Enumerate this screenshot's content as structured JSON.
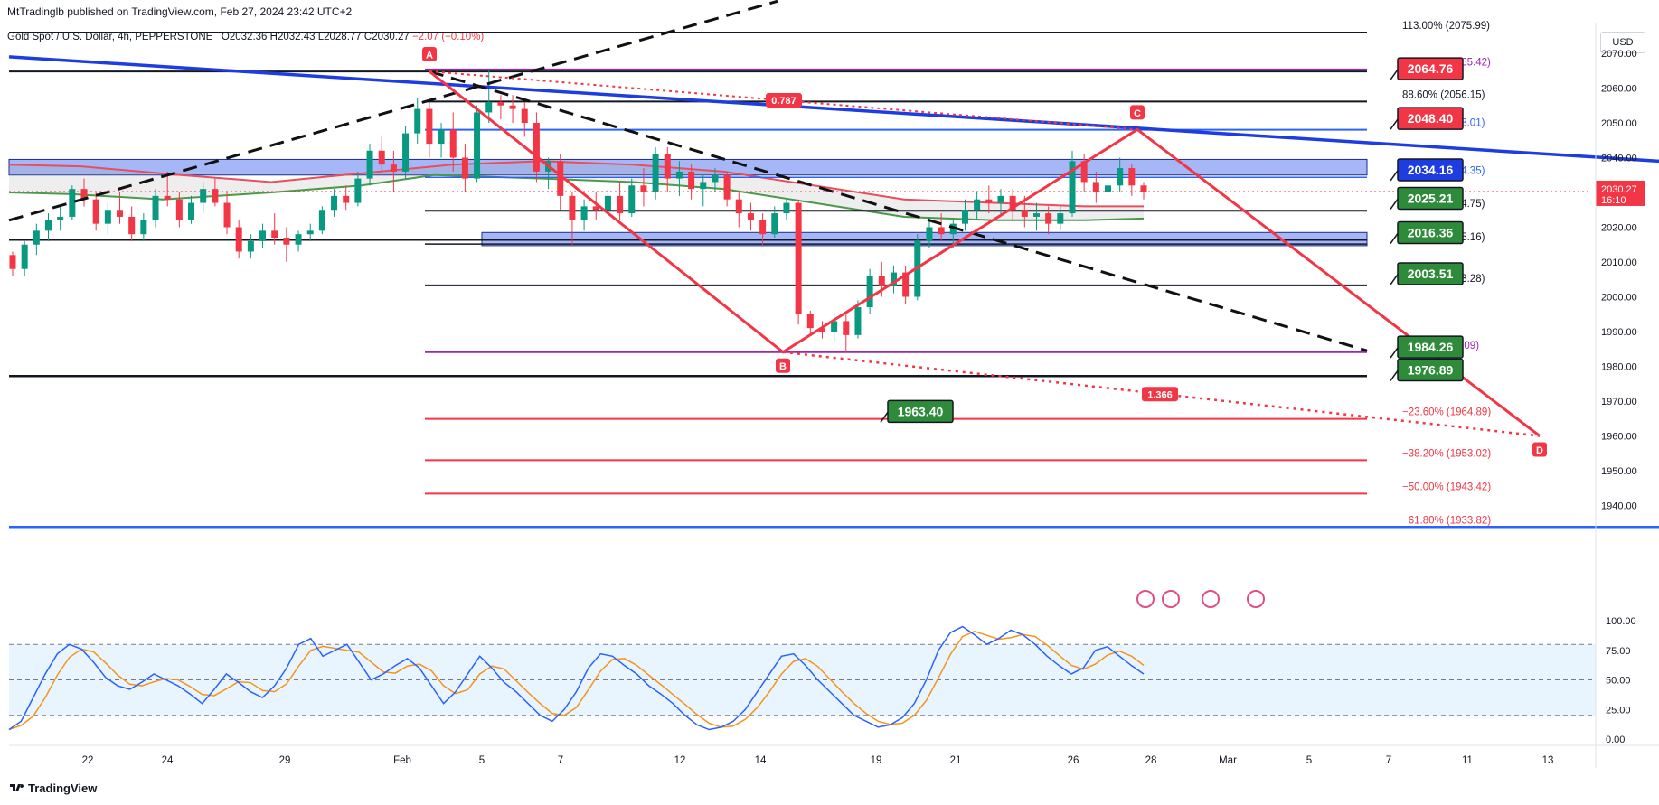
{
  "header": {
    "published": "MtTradinglb published on TradingView.com, Feb 27, 2024 23:42 UTC+2"
  },
  "symbol": {
    "name": "Gold Spot / U.S. Dollar, 4h, PEPPERSTONE",
    "open": "O2032.36",
    "high": "H2032.43",
    "low": "L2028.77",
    "close": "C2030.27",
    "change": "−2.07 (−0.10%)"
  },
  "currency": "USD",
  "footer": {
    "brand": "TradingView"
  },
  "colors": {
    "up": "#089981",
    "down": "#f23645",
    "trendline": "#1e3de0",
    "zone": "#5b7cf0",
    "pattern": "#f23645",
    "ema_red": "#e84e5c",
    "ema_green": "#4a9a4a",
    "stoch_k": "#2962ff",
    "stoch_d": "#f7931a"
  },
  "chart_data": {
    "type": "candlestick",
    "timeframe": "4h",
    "ylim": [
      1930,
      2080
    ],
    "price_ticks": [
      "2070.00",
      "2060.00",
      "2050.00",
      "2040.00",
      "2030.00",
      "2020.00",
      "2010.00",
      "2000.00",
      "1990.00",
      "1980.00",
      "1970.00",
      "1960.00",
      "1950.00",
      "1940.00"
    ],
    "x_ticks": [
      "22",
      "24",
      "29",
      "Feb",
      "5",
      "7",
      "12",
      "14",
      "19",
      "21",
      "26",
      "28",
      "Mar",
      "5",
      "7",
      "11",
      "13"
    ],
    "current_price": "2030.27",
    "countdown": "16:10",
    "price_labels": [
      {
        "value": "2064.76",
        "kind": "red"
      },
      {
        "value": "2048.40",
        "kind": "red"
      },
      {
        "value": "2034.16",
        "kind": "blue"
      },
      {
        "value": "2025.21",
        "kind": "green"
      },
      {
        "value": "2016.36",
        "kind": "green"
      },
      {
        "value": "2003.51",
        "kind": "green"
      },
      {
        "value": "1984.26",
        "kind": "green"
      },
      {
        "value": "1976.89",
        "kind": "green"
      },
      {
        "value": "1963.40",
        "kind": "green"
      }
    ],
    "fib_levels": [
      {
        "text": "113.00% (2075.99)",
        "color": "#131722"
      },
      {
        "text": "100.00% (2065.42)",
        "color": "#9c27b0"
      },
      {
        "text": "88.60% (2056.15)",
        "color": "#131722"
      },
      {
        "text": "78.60% (2048.01)",
        "color": "#2962ff"
      },
      {
        "text": "61.80% (2034.35)",
        "color": "#2962ff"
      },
      {
        "text": "50.00% (2024.75)",
        "color": "#131722"
      },
      {
        "text": "38.20% (2015.16)",
        "color": "#131722"
      },
      {
        "text": "23.60% (2003.28)",
        "color": "#131722"
      },
      {
        "text": "0.00% (1984.09)",
        "color": "#9c27b0"
      },
      {
        "text": "−23.60% (1964.89)",
        "color": "#f23645"
      },
      {
        "text": "−38.20% (1953.02)",
        "color": "#f23645"
      },
      {
        "text": "−50.00% (1943.42)",
        "color": "#f23645"
      },
      {
        "text": "−61.80% (1933.82)",
        "color": "#f23645"
      }
    ],
    "pattern_points": [
      "A",
      "B",
      "C",
      "D"
    ],
    "ratio_labels": [
      "0.787",
      "1.366"
    ],
    "stoch_ticks": [
      "100.00",
      "75.00",
      "50.00",
      "25.00",
      "0.00"
    ],
    "candles": [
      [
        2012,
        2013,
        2006,
        2008
      ],
      [
        2008,
        2016,
        2006,
        2015
      ],
      [
        2015,
        2021,
        2012,
        2019
      ],
      [
        2019,
        2024,
        2016,
        2022
      ],
      [
        2022,
        2026,
        2019,
        2023
      ],
      [
        2023,
        2032,
        2022,
        2031
      ],
      [
        2031,
        2034,
        2026,
        2028
      ],
      [
        2028,
        2030,
        2019,
        2021
      ],
      [
        2021,
        2027,
        2018,
        2025
      ],
      [
        2025,
        2030,
        2021,
        2023
      ],
      [
        2023,
        2026,
        2016,
        2018
      ],
      [
        2018,
        2024,
        2016,
        2022
      ],
      [
        2022,
        2031,
        2020,
        2029
      ],
      [
        2029,
        2036,
        2026,
        2028
      ],
      [
        2028,
        2030,
        2020,
        2022
      ],
      [
        2022,
        2029,
        2021,
        2027
      ],
      [
        2027,
        2033,
        2024,
        2031
      ],
      [
        2031,
        2034,
        2026,
        2027
      ],
      [
        2027,
        2030,
        2018,
        2020
      ],
      [
        2020,
        2022,
        2011,
        2013
      ],
      [
        2013,
        2018,
        2011,
        2016
      ],
      [
        2016,
        2021,
        2014,
        2019
      ],
      [
        2019,
        2024,
        2015,
        2017
      ],
      [
        2017,
        2020,
        2010,
        2015
      ],
      [
        2015,
        2019,
        2013,
        2018
      ],
      [
        2018,
        2021,
        2016,
        2019
      ],
      [
        2019,
        2026,
        2018,
        2025
      ],
      [
        2025,
        2031,
        2023,
        2029
      ],
      [
        2029,
        2032,
        2025,
        2027
      ],
      [
        2027,
        2036,
        2026,
        2034
      ],
      [
        2034,
        2044,
        2032,
        2042
      ],
      [
        2042,
        2046,
        2036,
        2038
      ],
      [
        2038,
        2042,
        2030,
        2036
      ],
      [
        2036,
        2049,
        2034,
        2047
      ],
      [
        2047,
        2057,
        2044,
        2054
      ],
      [
        2054,
        2056,
        2040,
        2044
      ],
      [
        2044,
        2050,
        2040,
        2048
      ],
      [
        2048,
        2053,
        2036,
        2040
      ],
      [
        2040,
        2044,
        2030,
        2034
      ],
      [
        2034,
        2055,
        2033,
        2053
      ],
      [
        2053,
        2065,
        2050,
        2056
      ],
      [
        2056,
        2058,
        2051,
        2055
      ],
      [
        2055,
        2058,
        2050,
        2054
      ],
      [
        2054,
        2056,
        2046,
        2050
      ],
      [
        2050,
        2053,
        2033,
        2036
      ],
      [
        2036,
        2040,
        2031,
        2039
      ],
      [
        2039,
        2041,
        2025,
        2029
      ],
      [
        2029,
        2030,
        2015,
        2022
      ],
      [
        2022,
        2028,
        2019,
        2026
      ],
      [
        2026,
        2030,
        2022,
        2025
      ],
      [
        2025,
        2031,
        2024,
        2029
      ],
      [
        2029,
        2033,
        2022,
        2024
      ],
      [
        2024,
        2034,
        2023,
        2032
      ],
      [
        2032,
        2037,
        2026,
        2030
      ],
      [
        2030,
        2043,
        2028,
        2041
      ],
      [
        2041,
        2043,
        2030,
        2034
      ],
      [
        2034,
        2039,
        2029,
        2036
      ],
      [
        2036,
        2038,
        2028,
        2031
      ],
      [
        2031,
        2035,
        2026,
        2033
      ],
      [
        2033,
        2037,
        2030,
        2035
      ],
      [
        2035,
        2036,
        2026,
        2028
      ],
      [
        2028,
        2030,
        2020,
        2024
      ],
      [
        2024,
        2027,
        2019,
        2022
      ],
      [
        2022,
        2024,
        2015,
        2018
      ],
      [
        2018,
        2026,
        2017,
        2024
      ],
      [
        2024,
        2028,
        2022,
        2027
      ],
      [
        2027,
        2028,
        1992,
        1995
      ],
      [
        1995,
        1996,
        1989,
        1991
      ],
      [
        1991,
        1993,
        1988,
        1990
      ],
      [
        1990,
        1995,
        1987,
        1993
      ],
      [
        1993,
        1995,
        1984,
        1989
      ],
      [
        1989,
        1999,
        1988,
        1997
      ],
      [
        1997,
        2008,
        1995,
        2006
      ],
      [
        2006,
        2010,
        2000,
        2003
      ],
      [
        2003,
        2009,
        2001,
        2007
      ],
      [
        2007,
        2009,
        1998,
        2000
      ],
      [
        2000,
        2018,
        1999,
        2016
      ],
      [
        2016,
        2023,
        2014,
        2020
      ],
      [
        2020,
        2024,
        2016,
        2018
      ],
      [
        2018,
        2022,
        2014,
        2021
      ],
      [
        2021,
        2028,
        2019,
        2025
      ],
      [
        2025,
        2030,
        2022,
        2028
      ],
      [
        2028,
        2032,
        2024,
        2027
      ],
      [
        2027,
        2031,
        2023,
        2029
      ],
      [
        2029,
        2031,
        2022,
        2025
      ],
      [
        2025,
        2029,
        2020,
        2023
      ],
      [
        2023,
        2027,
        2019,
        2024
      ],
      [
        2024,
        2026,
        2018,
        2021
      ],
      [
        2021,
        2026,
        2019,
        2024
      ],
      [
        2024,
        2042,
        2023,
        2039
      ],
      [
        2039,
        2041,
        2030,
        2033
      ],
      [
        2033,
        2036,
        2027,
        2030
      ],
      [
        2030,
        2034,
        2026,
        2032
      ],
      [
        2032,
        2040,
        2030,
        2037
      ],
      [
        2037,
        2038,
        2029,
        2032
      ],
      [
        2032,
        2033,
        2028,
        2030
      ]
    ],
    "stochastic": {
      "k": [
        8,
        15,
        35,
        55,
        72,
        80,
        76,
        65,
        52,
        45,
        42,
        48,
        55,
        50,
        45,
        38,
        30,
        42,
        55,
        48,
        40,
        35,
        45,
        60,
        80,
        85,
        70,
        75,
        80,
        65,
        50,
        55,
        62,
        68,
        60,
        45,
        30,
        40,
        55,
        70,
        60,
        48,
        40,
        30,
        20,
        15,
        25,
        40,
        60,
        72,
        70,
        62,
        55,
        45,
        38,
        30,
        20,
        12,
        8,
        10,
        15,
        25,
        40,
        55,
        70,
        72,
        62,
        50,
        40,
        30,
        20,
        15,
        10,
        12,
        18,
        30,
        50,
        75,
        90,
        95,
        88,
        80,
        85,
        92,
        88,
        80,
        70,
        62,
        55,
        60,
        75,
        78,
        70,
        62,
        55
      ]
    }
  }
}
